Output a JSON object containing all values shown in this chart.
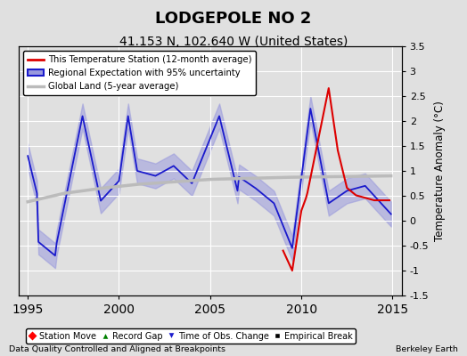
{
  "title": "LODGEPOLE NO 2",
  "subtitle": "41.153 N, 102.640 W (United States)",
  "ylabel": "Temperature Anomaly (°C)",
  "xlabel_bottom": "Data Quality Controlled and Aligned at Breakpoints",
  "xlabel_right": "Berkeley Earth",
  "xlim": [
    1994.5,
    2015.5
  ],
  "ylim": [
    -1.5,
    3.5
  ],
  "yticks": [
    -1.5,
    -1.0,
    -0.5,
    0.0,
    0.5,
    1.0,
    1.5,
    2.0,
    2.5,
    3.0,
    3.5
  ],
  "xticks": [
    1995,
    2000,
    2005,
    2010,
    2015
  ],
  "bg_color": "#e0e0e0",
  "plot_bg_color": "#e0e0e0",
  "grid_color": "#ffffff",
  "regional_line_color": "#1a1acc",
  "regional_fill_color": "#9999dd",
  "station_line_color": "#dd0000",
  "global_line_color": "#bbbbbb",
  "title_fontsize": 13,
  "subtitle_fontsize": 10
}
